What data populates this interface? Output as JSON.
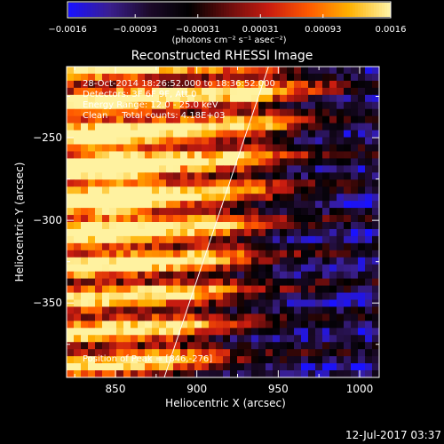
{
  "colorbar": {
    "tick_labels": [
      "−0.0016",
      "−0.00093",
      "−0.00031",
      "0.00031",
      "0.00093",
      "0.0016"
    ],
    "tick_values": [
      -0.0016,
      -0.00093,
      -0.00031,
      0.00031,
      0.00093,
      0.0016
    ],
    "range": [
      -0.0016,
      0.0016
    ],
    "unit_label": "(photons cm⁻² s⁻¹ asec⁻²)"
  },
  "chart_data": {
    "type": "heatmap",
    "title": "Reconstructed RHESSI Image",
    "xlabel": "Heliocentric X (arcsec)",
    "ylabel": "Heliocentric Y (arcsec)",
    "xlim": [
      820,
      1012
    ],
    "ylim": [
      -395,
      -207
    ],
    "x_ticks": [
      850,
      900,
      950,
      1000
    ],
    "x_tick_labels": [
      "850",
      "900",
      "950",
      "1000"
    ],
    "y_ticks": [
      -250,
      -300,
      -350
    ],
    "y_tick_labels": [
      "−250",
      "−300",
      "−350"
    ],
    "colormap": [
      "#1a12ff",
      "#3a1f8f",
      "#1c0a2a",
      "#000000",
      "#6b0d0d",
      "#c91c10",
      "#ff5a00",
      "#ffb000",
      "#fff2a0"
    ],
    "info_lines": [
      "28-Oct-2014 18:26:52.000 to 18:36:52.000",
      "Detectors: 3F 6F 9F, Att 0",
      "Energy Range: 12.0 - 25.0 keV",
      "Clean     Total counts: 4.18E+03"
    ],
    "peak_label": "Position of Peak = [846,-276]",
    "peak": [
      846,
      -276
    ],
    "limb_line": [
      [
        880,
        -395
      ],
      [
        944,
        -207
      ]
    ]
  },
  "footer": {
    "date": "12-Jul-2017 03:37"
  }
}
